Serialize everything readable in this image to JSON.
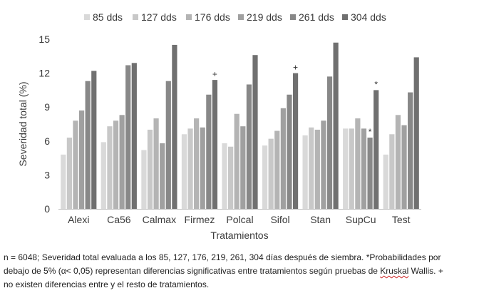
{
  "chart_data": {
    "type": "bar",
    "categories": [
      "Alexi",
      "Ca56",
      "Calmax",
      "Firmez",
      "Polcal",
      "Sifol",
      "Stan",
      "SupCu",
      "Test"
    ],
    "series": [
      {
        "name": "85 dds",
        "color": "#d9d9d9",
        "values": [
          4.8,
          5.9,
          5.2,
          6.6,
          5.8,
          5.6,
          6.5,
          7.1,
          4.8
        ]
      },
      {
        "name": "127 dds",
        "color": "#c8c8c8",
        "values": [
          6.3,
          7.3,
          7.0,
          7.1,
          5.5,
          6.2,
          7.2,
          7.1,
          6.6
        ]
      },
      {
        "name": "176 dds",
        "color": "#b4b4b4",
        "values": [
          7.8,
          7.8,
          8.0,
          8.0,
          8.4,
          6.9,
          7.0,
          8.0,
          8.3
        ]
      },
      {
        "name": "219 dds",
        "color": "#a0a0a0",
        "values": [
          8.7,
          8.3,
          5.8,
          7.2,
          7.3,
          8.9,
          7.8,
          7.1,
          7.4
        ]
      },
      {
        "name": "261 dds",
        "color": "#888888",
        "values": [
          11.3,
          12.7,
          11.3,
          10.1,
          11.0,
          10.1,
          11.7,
          6.3,
          10.3
        ]
      },
      {
        "name": "304 dds",
        "color": "#707070",
        "values": [
          12.2,
          12.9,
          14.5,
          11.4,
          13.6,
          12.0,
          14.7,
          10.5,
          13.4
        ]
      }
    ],
    "annotations": [
      {
        "category": "Firmez",
        "series": "304 dds",
        "text": "+"
      },
      {
        "category": "Sifol",
        "series": "304 dds",
        "text": "+"
      },
      {
        "category": "SupCu",
        "series": "261 dds",
        "text": "*"
      },
      {
        "category": "SupCu",
        "series": "304 dds",
        "text": "*"
      }
    ],
    "title": "",
    "xlabel": "Tratamientos",
    "ylabel": "Severidad total (%)",
    "ylim": [
      0,
      15
    ],
    "yticks": [
      0,
      3,
      6,
      9,
      12,
      15
    ],
    "grid": false,
    "legend_position": "top"
  },
  "caption": {
    "line1": "n = 6048; Severidad total evaluada a los 85, 127, 176, 219, 261, 304 días después de siembra. *Probabilidades por",
    "line2_a": "debajo de 5% (α< 0,05) representan diferencias significativas entre tratamientos según pruebas de ",
    "line2_kw": "Kruskal",
    "line2_b": " Wallis. +",
    "line3": "no existen diferencias entre y el resto de tratamientos."
  }
}
